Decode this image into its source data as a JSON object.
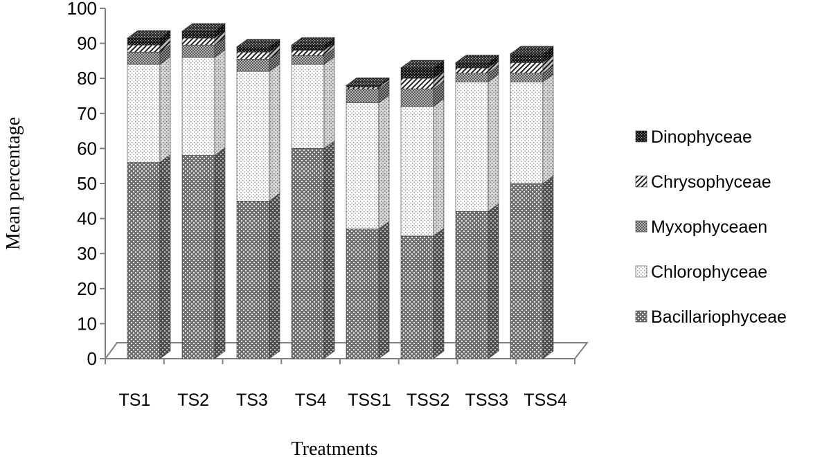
{
  "chart_data": {
    "type": "bar",
    "stacked": true,
    "three_d": true,
    "categories": [
      "TS1",
      "TS2",
      "TS3",
      "TS4",
      "TSS1",
      "TSS2",
      "TSS3",
      "TSS4"
    ],
    "series": [
      {
        "name": "Bacillariophyceae",
        "values": [
          56,
          58,
          45,
          60,
          37,
          35,
          42,
          50
        ],
        "pattern": "bac"
      },
      {
        "name": "Chlorophyceae",
        "values": [
          28,
          28,
          37,
          24,
          36,
          37,
          37,
          29
        ],
        "pattern": "chl"
      },
      {
        "name": "Myxophyceaen",
        "values": [
          3.5,
          3.5,
          3.5,
          2.5,
          4,
          5,
          2.5,
          2.5
        ],
        "pattern": "myx"
      },
      {
        "name": "Chrysophyceae",
        "values": [
          2,
          2,
          2,
          1.5,
          0.5,
          3,
          1.5,
          3
        ],
        "pattern": "chr"
      },
      {
        "name": "Dinophyceae",
        "values": [
          2,
          2,
          1.5,
          1.5,
          0.5,
          3,
          1.5,
          2.5
        ],
        "pattern": "din"
      }
    ],
    "xlabel": "Treatments",
    "ylabel": "Mean percentage",
    "ylim": [
      0,
      100
    ],
    "yticks": [
      0,
      10,
      20,
      30,
      40,
      50,
      60,
      70,
      80,
      90,
      100
    ],
    "grid": false,
    "legend_position": "right"
  }
}
